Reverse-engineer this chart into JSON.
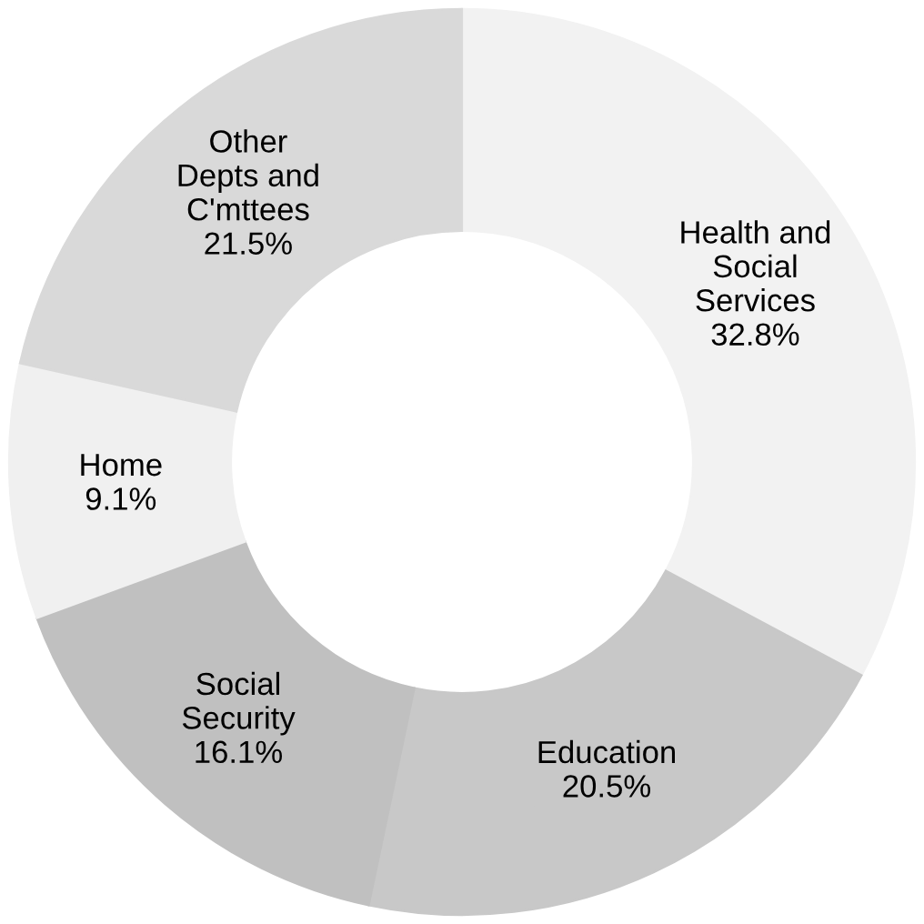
{
  "chart_data": {
    "type": "donut",
    "categories": [
      "Health and\nSocial\nServices",
      "Education",
      "Social\nSecurity",
      "Home",
      "Other\nDepts and\nC'mttees"
    ],
    "values": [
      32.8,
      20.5,
      16.1,
      9.1,
      21.5
    ],
    "colors": [
      "#f2f2f2",
      "#c8c8c8",
      "#c0c0c0",
      "#f0f0f0",
      "#d9d9d9"
    ],
    "value_labels": [
      "32.8%",
      "20.5%",
      "16.1%",
      "9.1%",
      "21.5%"
    ],
    "legend": false
  }
}
